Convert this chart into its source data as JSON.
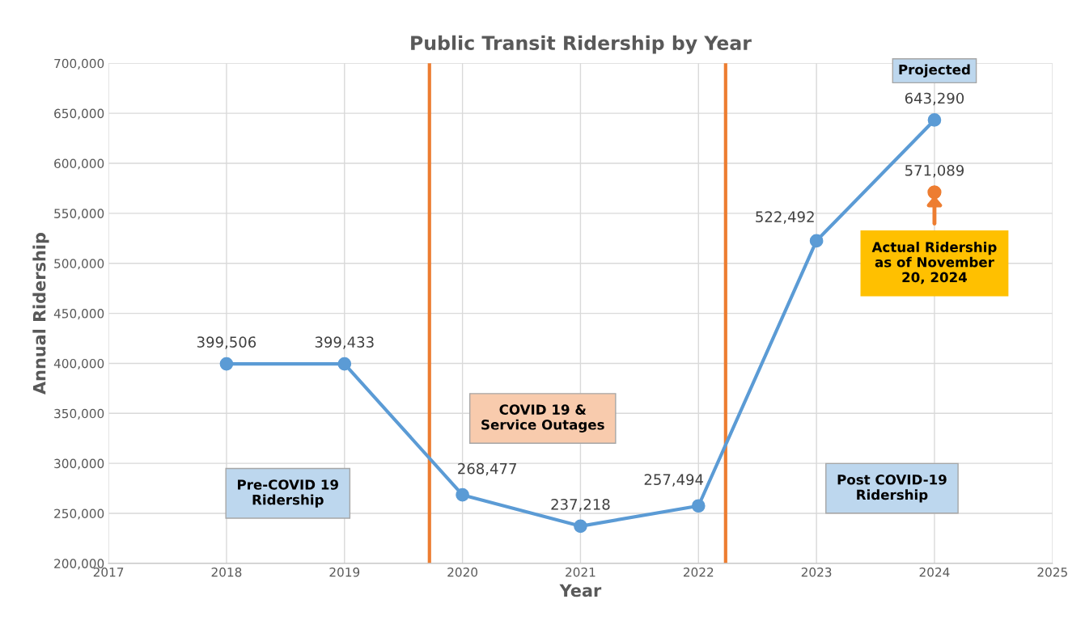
{
  "chart_data": {
    "type": "line",
    "title": "Public Transit Ridership by Year",
    "xlabel": "Year",
    "ylabel": "Annual Ridership",
    "series": [
      {
        "color": "#5b9bd5",
        "x": [
          2018,
          2019,
          2020,
          2021,
          2022,
          2023,
          2024
        ],
        "values": [
          399506,
          399433,
          268477,
          237218,
          257494,
          522492,
          643290
        ],
        "value_labels": [
          "399,506",
          "399,433",
          "268,477",
          "237,218",
          "257,494",
          "522,492",
          "643,290"
        ]
      },
      {
        "type": "scatter",
        "color": "#ed7d31",
        "x": [
          2024
        ],
        "values": [
          571089
        ],
        "value_labels": [
          "571,089"
        ]
      }
    ],
    "marker": "circle",
    "line_style": "solid",
    "grid": true,
    "xlim": [
      2017,
      2025
    ],
    "xticks": [
      2017,
      2018,
      2019,
      2020,
      2021,
      2022,
      2023,
      2024,
      2025
    ],
    "ylim": [
      200000,
      700000
    ],
    "yticks": [
      {
        "value": 200000,
        "label": "200,000"
      },
      {
        "value": 250000,
        "label": "250,000"
      },
      {
        "value": 300000,
        "label": "300,000"
      },
      {
        "value": 350000,
        "label": "350,000"
      },
      {
        "value": 400000,
        "label": "400,000"
      },
      {
        "value": 450000,
        "label": "450,000"
      },
      {
        "value": 500000,
        "label": "500,000"
      },
      {
        "value": 550000,
        "label": "550,000"
      },
      {
        "value": 600000,
        "label": "600,000"
      },
      {
        "value": 650000,
        "label": "650,000"
      },
      {
        "value": 700000,
        "label": "700,000"
      }
    ],
    "ref_lines": [
      {
        "axis": "x",
        "value": 2019.72,
        "color": "#ed7d31"
      },
      {
        "axis": "x",
        "value": 2022.23,
        "color": "#ed7d31"
      }
    ],
    "annotations": [
      "Projected",
      "Pre-COVID 19\nRidership",
      "COVID 19 &\nService Outages",
      "Post COVID-19\nRidership",
      "Actual Ridership\nas of November\n20, 2024"
    ]
  }
}
